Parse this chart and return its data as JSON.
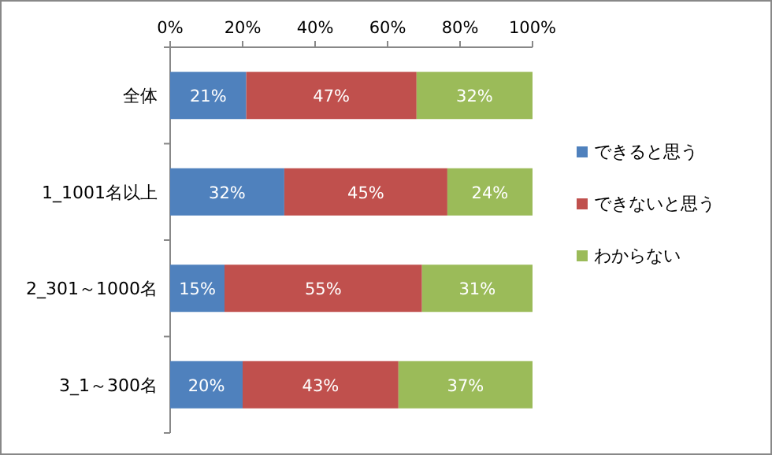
{
  "chart_data": {
    "type": "bar",
    "orientation": "horizontal",
    "stacked": true,
    "categories": [
      "全体",
      "1_1001名以上",
      "2_301～1000名",
      "3_1～300名"
    ],
    "series": [
      {
        "name": "できると思う",
        "color": "#4f81bd",
        "values": [
          21,
          31.5,
          15,
          20
        ],
        "value_labels": [
          "21%",
          "32%",
          "15%",
          "20%"
        ]
      },
      {
        "name": "できないと思う",
        "color": "#c0504d",
        "values": [
          47,
          45,
          54.5,
          43
        ],
        "value_labels": [
          "47%",
          "45%",
          "55%",
          "43%"
        ]
      },
      {
        "name": "わからない",
        "color": "#9bbb59",
        "values": [
          32,
          23.5,
          30.5,
          37
        ],
        "value_labels": [
          "32%",
          "24%",
          "31%",
          "37%"
        ]
      }
    ],
    "xlim": [
      0,
      100
    ],
    "xticks": [
      {
        "value": 0,
        "label": "0%"
      },
      {
        "value": 20,
        "label": "20%"
      },
      {
        "value": 40,
        "label": "40%"
      },
      {
        "value": 60,
        "label": "60%"
      },
      {
        "value": 80,
        "label": "80%"
      },
      {
        "value": 100,
        "label": "100%"
      }
    ],
    "legend": "right",
    "grid": false
  }
}
